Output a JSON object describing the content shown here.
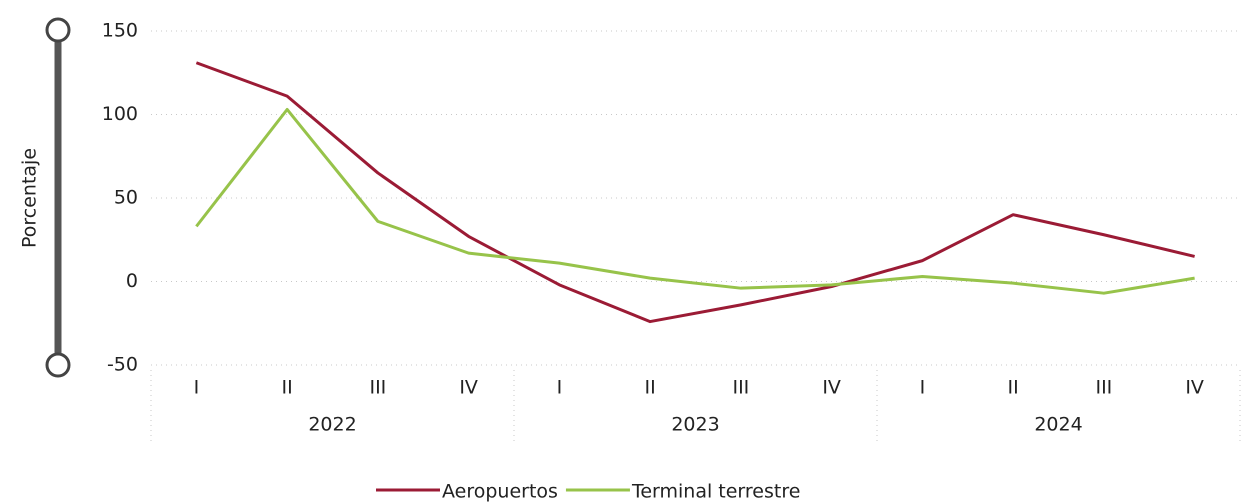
{
  "chart_data": {
    "type": "line",
    "y_label": "Porcentaje",
    "categories": [
      "I",
      "II",
      "III",
      "IV",
      "I",
      "II",
      "III",
      "IV",
      "I",
      "II",
      "III",
      "IV"
    ],
    "groups": [
      "2022",
      "2023",
      "2024"
    ],
    "series": [
      {
        "name": "Aeropuertos",
        "color": "#9b1b35",
        "values": [
          131,
          111,
          65,
          27,
          -2,
          -24,
          -14,
          -3,
          12.5,
          40,
          28,
          15
        ]
      },
      {
        "name": "Terminal terrestre",
        "color": "#97c34a",
        "values": [
          33,
          103,
          36,
          17,
          11,
          2,
          -4,
          -2,
          3,
          -1,
          -7,
          2
        ]
      }
    ],
    "ylim": [
      -50,
      150
    ],
    "yticks": [
      -50,
      0,
      50,
      100,
      150
    ],
    "grid": true
  }
}
